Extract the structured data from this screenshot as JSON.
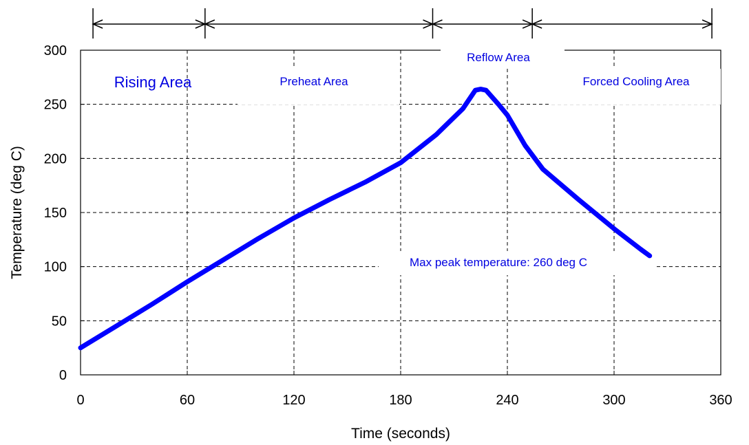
{
  "chart_data": {
    "type": "line",
    "xlabel": "Time (seconds)",
    "ylabel": "Temperature (deg C)",
    "xlim": [
      0,
      360
    ],
    "ylim": [
      0,
      300
    ],
    "x_ticks": [
      0,
      60,
      120,
      180,
      240,
      300,
      360
    ],
    "y_ticks": [
      0,
      50,
      100,
      150,
      200,
      250,
      300
    ],
    "grid": true,
    "series": [
      {
        "color": "#0000ff",
        "x": [
          0,
          20,
          40,
          60,
          80,
          100,
          120,
          140,
          160,
          180,
          200,
          215,
          222,
          225,
          228,
          235,
          240,
          250,
          260,
          280,
          300,
          315,
          320
        ],
        "y": [
          25,
          45,
          65,
          86,
          106,
          126,
          145,
          162,
          178,
          196,
          222,
          246,
          263,
          264,
          263,
          250,
          240,
          212,
          190,
          162,
          135,
          116,
          110
        ]
      }
    ],
    "regions": [
      {
        "label": "Rising Area",
        "x_start": 7,
        "x_end": 70
      },
      {
        "label": "Preheat Area",
        "x_start": 70,
        "x_end": 198
      },
      {
        "label": "Reflow Area",
        "x_start": 198,
        "x_end": 254
      },
      {
        "label": "Forced Cooling Area",
        "x_start": 254,
        "x_end": 355
      }
    ],
    "annotations": [
      {
        "text": "Max peak temperature: 260 deg C"
      }
    ]
  }
}
